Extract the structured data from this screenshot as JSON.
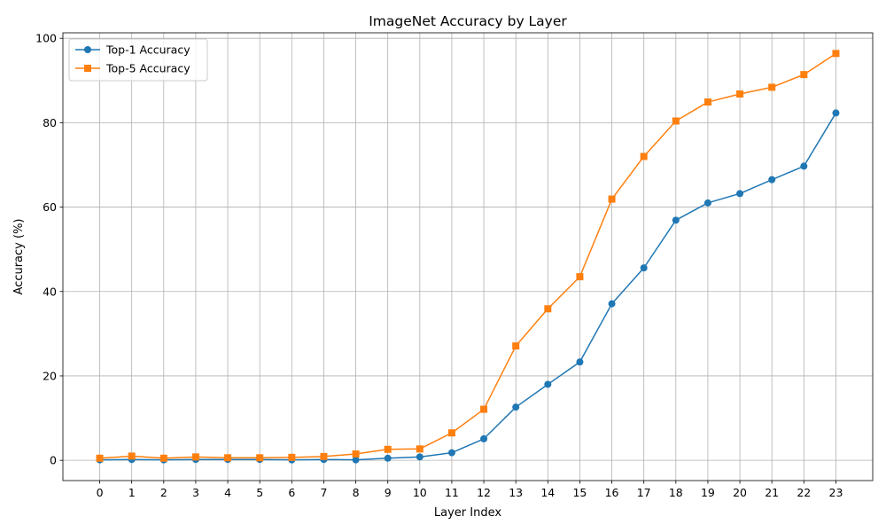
{
  "chart_data": {
    "type": "line",
    "title": "ImageNet Accuracy by Layer",
    "xlabel": "Layer Index",
    "ylabel": "Accuracy (%)",
    "x": [
      0,
      1,
      2,
      3,
      4,
      5,
      6,
      7,
      8,
      9,
      10,
      11,
      12,
      13,
      14,
      15,
      16,
      17,
      18,
      19,
      20,
      21,
      22,
      23
    ],
    "xlim": [
      -1.15,
      24.15
    ],
    "ylim": [
      -4.8,
      101.3
    ],
    "yticks": [
      0,
      20,
      40,
      60,
      80,
      100
    ],
    "grid": true,
    "legend_position": "upper-left",
    "series": [
      {
        "name": "Top-1 Accuracy",
        "color": "#1f77b4",
        "marker": "circle",
        "values": [
          0.1,
          0.2,
          0.1,
          0.2,
          0.2,
          0.2,
          0.1,
          0.2,
          0.1,
          0.5,
          0.8,
          1.8,
          5.1,
          12.6,
          18.0,
          23.3,
          37.1,
          45.6,
          56.9,
          61.0,
          63.2,
          66.5,
          69.7,
          82.3
        ]
      },
      {
        "name": "Top-5 Accuracy",
        "color": "#ff7f0e",
        "marker": "square",
        "values": [
          0.5,
          1.0,
          0.5,
          0.8,
          0.6,
          0.6,
          0.7,
          0.9,
          1.5,
          2.6,
          2.7,
          6.5,
          12.1,
          27.1,
          35.9,
          43.5,
          61.9,
          72.0,
          80.4,
          84.9,
          86.8,
          88.4,
          91.4,
          96.4
        ]
      }
    ]
  }
}
